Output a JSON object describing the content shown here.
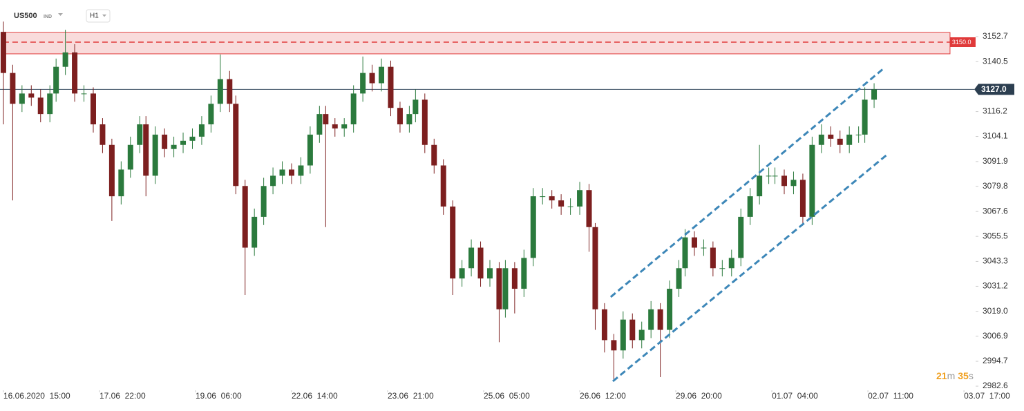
{
  "chart_data": {
    "type": "candlestick",
    "symbol": "US500",
    "market": "IND",
    "timeframe": "H1",
    "countdown": [
      "21",
      "m",
      "35",
      "s"
    ],
    "x": [
      0,
      3,
      6,
      9,
      12,
      15,
      17,
      20,
      23,
      26,
      29,
      32,
      35,
      38,
      41,
      44,
      46,
      49,
      52,
      55,
      58,
      61,
      64,
      67,
      70,
      73,
      75,
      78,
      81,
      84,
      87,
      90,
      93,
      96,
      99,
      102,
      104,
      107,
      110,
      113,
      116,
      119,
      122,
      125,
      128,
      131,
      133,
      136,
      139,
      142,
      145,
      148,
      151,
      154,
      157,
      160,
      162,
      165,
      168,
      171,
      174,
      177,
      180,
      183,
      186,
      189,
      191,
      194,
      197,
      200,
      203,
      206,
      209,
      212,
      215,
      218,
      220,
      223,
      226,
      229,
      232,
      235,
      238,
      241,
      244,
      247,
      249,
      252,
      255,
      258,
      261,
      264,
      267,
      270,
      273,
      276,
      278,
      281
    ],
    "open": [
      3155,
      3135,
      3120,
      3125,
      3123,
      3115,
      3125,
      3138,
      3145,
      3125,
      3125,
      3110,
      3100,
      3075,
      3088,
      3100,
      3110,
      3085,
      3105,
      3098,
      3100,
      3102,
      3104,
      3110,
      3120,
      3132,
      3120,
      3080,
      3050,
      3065,
      3080,
      3085,
      3088,
      3085,
      3090,
      3105,
      3115,
      3110,
      3108,
      3110,
      3125,
      3135,
      3130,
      3138,
      3118,
      3110,
      3115,
      3122,
      3100,
      3090,
      3070,
      3035,
      3040,
      3050,
      3035,
      3040,
      3020,
      3040,
      3030,
      3045,
      3075,
      3075,
      3073,
      3070,
      3070,
      3078,
      3060,
      3020,
      3005,
      3000,
      3015,
      3005,
      3010,
      3020,
      3010,
      3030,
      3040,
      3055,
      3050,
      3050,
      3040,
      3040,
      3045,
      3065,
      3075,
      3085,
      3085,
      3085,
      3080,
      3083,
      3065,
      3100,
      3105,
      3103,
      3100,
      3105,
      3105,
      3122
    ],
    "high": [
      3160,
      3139,
      3129,
      3129,
      3127,
      3129,
      3142,
      3156,
      3149,
      3129,
      3128,
      3113,
      3103,
      3092,
      3104,
      3114,
      3114,
      3109,
      3108,
      3104,
      3106,
      3108,
      3114,
      3124,
      3144,
      3136,
      3124,
      3083,
      3069,
      3084,
      3089,
      3092,
      3091,
      3094,
      3109,
      3119,
      3119,
      3113,
      3113,
      3129,
      3143,
      3139,
      3142,
      3141,
      3121,
      3119,
      3127,
      3125,
      3103,
      3093,
      3073,
      3044,
      3054,
      3053,
      3044,
      3043,
      3044,
      3043,
      3049,
      3079,
      3079,
      3078,
      3076,
      3074,
      3082,
      3081,
      3062,
      3023,
      3008,
      3019,
      3018,
      3014,
      3024,
      3023,
      3034,
      3044,
      3059,
      3058,
      3054,
      3053,
      3044,
      3049,
      3069,
      3079,
      3100,
      3089,
      3089,
      3088,
      3087,
      3086,
      3104,
      3110,
      3109,
      3107,
      3109,
      3109,
      3128,
      3130
    ],
    "low": [
      3110,
      3073,
      3116,
      3119,
      3111,
      3111,
      3121,
      3134,
      3121,
      3121,
      3106,
      3096,
      3063,
      3071,
      3084,
      3096,
      3075,
      3081,
      3094,
      3094,
      3096,
      3098,
      3100,
      3106,
      3116,
      3116,
      3076,
      3027,
      3046,
      3061,
      3076,
      3081,
      3081,
      3081,
      3086,
      3101,
      3060,
      3104,
      3104,
      3106,
      3121,
      3126,
      3126,
      3114,
      3106,
      3106,
      3111,
      3096,
      3086,
      3066,
      3027,
      3031,
      3036,
      3031,
      3031,
      3004,
      3016,
      3018,
      3026,
      3041,
      3071,
      3069,
      3066,
      3066,
      3066,
      3048,
      3010,
      2999,
      2985,
      2996,
      3001,
      3001,
      3006,
      2987,
      3006,
      3026,
      3036,
      3046,
      3046,
      3036,
      3036,
      3036,
      3041,
      3061,
      3071,
      3081,
      3081,
      3076,
      3076,
      3061,
      3061,
      3096,
      3099,
      3096,
      3096,
      3101,
      3101,
      3118
    ],
    "close": [
      3135,
      3120,
      3125,
      3123,
      3115,
      3125,
      3138,
      3145,
      3125,
      3125,
      3110,
      3100,
      3075,
      3088,
      3100,
      3110,
      3085,
      3105,
      3098,
      3100,
      3102,
      3104,
      3110,
      3120,
      3132,
      3120,
      3080,
      3050,
      3065,
      3080,
      3085,
      3088,
      3085,
      3090,
      3105,
      3115,
      3110,
      3108,
      3110,
      3125,
      3135,
      3130,
      3138,
      3118,
      3110,
      3115,
      3122,
      3100,
      3090,
      3070,
      3035,
      3040,
      3050,
      3035,
      3040,
      3020,
      3040,
      3030,
      3045,
      3075,
      3075,
      3073,
      3070,
      3070,
      3078,
      3060,
      3020,
      3005,
      3000,
      3015,
      3005,
      3010,
      3020,
      3010,
      3030,
      3040,
      3055,
      3050,
      3050,
      3040,
      3040,
      3045,
      3065,
      3075,
      3085,
      3085,
      3085,
      3080,
      3083,
      3065,
      3100,
      3105,
      3103,
      3100,
      3105,
      3105,
      3122,
      3127
    ],
    "up_color": "#2b7a3d",
    "down_color": "#7d1f1f",
    "xlim": [
      -1.1,
      326.7
    ],
    "ylim": [
      2980.6,
      3170.5
    ],
    "xticks": [
      {
        "value": 0,
        "label": "16.06.2020  15:00"
      },
      {
        "value": 31,
        "label": "17.06  22:00"
      },
      {
        "value": 62,
        "label": "19.06  06:00"
      },
      {
        "value": 93,
        "label": "22.06  14:00"
      },
      {
        "value": 124,
        "label": "23.06  21:00"
      },
      {
        "value": 155,
        "label": "25.06  05:00"
      },
      {
        "value": 186,
        "label": "26.06  12:00"
      },
      {
        "value": 217,
        "label": "29.06  20:00"
      },
      {
        "value": 248,
        "label": "01.07  04:00"
      },
      {
        "value": 279,
        "label": "02.07  11:00"
      },
      {
        "value": 310,
        "label": "03.07  17:00"
      }
    ],
    "yticks": [
      3152.7,
      3140.5,
      3116.2,
      3104.1,
      3091.9,
      3079.8,
      3067.6,
      3055.5,
      3043.3,
      3031.2,
      {
        "value": 3019,
        "label": "3019.0"
      },
      3006.9,
      2994.7,
      2982.6
    ],
    "resistance_zone": {
      "x": [
        0,
        305.5
      ],
      "y": [
        3144.3,
        3154.7
      ],
      "color": "#e03a3a"
    },
    "level": {
      "value": 3150,
      "label": "3150.0"
    },
    "last_price": {
      "value": 3127,
      "label": "3127.0"
    },
    "channel": [
      {
        "x": [
          196,
          284.4
        ],
        "y": [
          3026,
          3137.6
        ]
      },
      {
        "x": [
          196.7,
          285.7
        ],
        "y": [
          2985,
          3095.9
        ]
      }
    ],
    "channel_color": "#3d87b8"
  }
}
